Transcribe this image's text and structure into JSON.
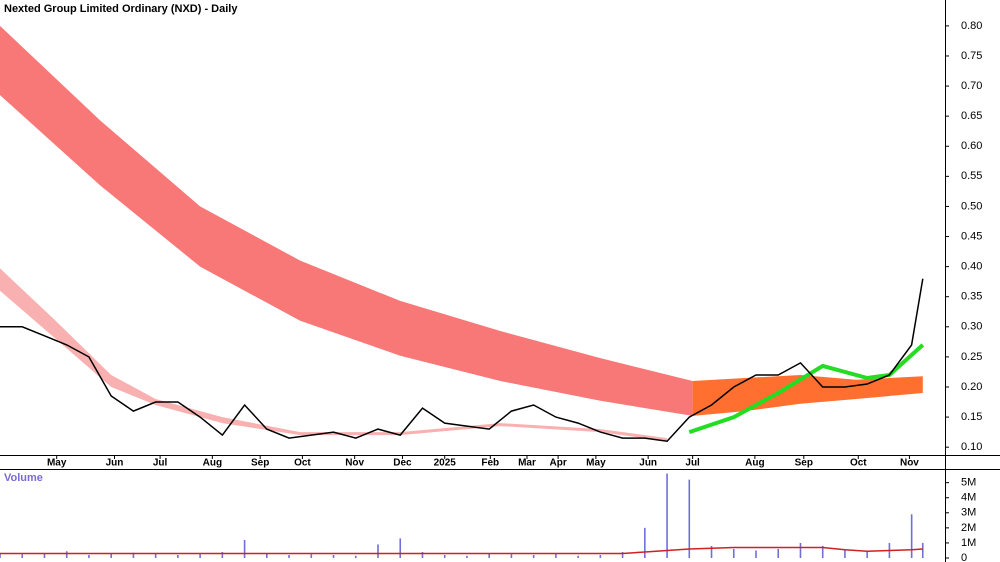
{
  "chart_data": [
    {
      "type": "line",
      "title": "Nexted Group Limited Ordinary (NXD) - Daily",
      "x": [
        0,
        2,
        4,
        6,
        8,
        10,
        12,
        14,
        16,
        18,
        20,
        22,
        24,
        26,
        28,
        30,
        32,
        34,
        36,
        38,
        40,
        42,
        44,
        46,
        48,
        50,
        52,
        54,
        56,
        58,
        60,
        62,
        64,
        66,
        68,
        70,
        72,
        74,
        76,
        78,
        80,
        82,
        83
      ],
      "xlim": [
        0,
        85
      ],
      "xticks": [
        {
          "value": 5.1,
          "label": "May"
        },
        {
          "value": 10.3,
          "label": "Jun"
        },
        {
          "value": 14.4,
          "label": "Jul"
        },
        {
          "value": 19.1,
          "label": "Aug"
        },
        {
          "value": 23.4,
          "label": "Sep"
        },
        {
          "value": 27.2,
          "label": "Oct"
        },
        {
          "value": 31.9,
          "label": "Nov"
        },
        {
          "value": 36.2,
          "label": "Dec"
        },
        {
          "value": 40.0,
          "label": "2025"
        },
        {
          "value": 44.1,
          "label": "Feb"
        },
        {
          "value": 47.4,
          "label": "Mar"
        },
        {
          "value": 50.2,
          "label": "Apr"
        },
        {
          "value": 53.6,
          "label": "May"
        },
        {
          "value": 58.3,
          "label": "Jun"
        },
        {
          "value": 62.3,
          "label": "Jul"
        },
        {
          "value": 67.9,
          "label": "Aug"
        },
        {
          "value": 72.3,
          "label": "Sep"
        },
        {
          "value": 77.2,
          "label": "Oct"
        },
        {
          "value": 81.8,
          "label": "Nov"
        }
      ],
      "ylim": [
        0.087,
        0.843
      ],
      "yticks": [
        {
          "value": 0.1,
          "label": "0.10"
        },
        0.15,
        {
          "value": 0.2,
          "label": "0.20"
        },
        0.25,
        {
          "value": 0.3,
          "label": "0.30"
        },
        0.35,
        {
          "value": 0.4,
          "label": "0.40"
        },
        0.45,
        {
          "value": 0.5,
          "label": "0.50"
        },
        0.55,
        {
          "value": 0.6,
          "label": "0.60"
        },
        0.65,
        {
          "value": 0.7,
          "label": "0.70"
        },
        0.75,
        {
          "value": 0.8,
          "label": "0.80"
        }
      ],
      "bands": [
        {
          "color": "#f87878",
          "x": [
            0,
            9,
            18,
            27,
            36,
            45,
            54,
            62.3
          ],
          "upper": [
            0.8,
            0.643,
            0.5,
            0.41,
            0.343,
            0.293,
            0.248,
            0.21
          ],
          "lower": [
            0.685,
            0.535,
            0.4,
            0.31,
            0.252,
            0.21,
            0.177,
            0.152
          ]
        },
        {
          "color": "#ff7030",
          "x": [
            62.3,
            67,
            72,
            77,
            83
          ],
          "upper": [
            0.21,
            0.215,
            0.22,
            0.212,
            0.218
          ],
          "lower": [
            0.152,
            0.16,
            0.172,
            0.18,
            0.19
          ]
        },
        {
          "color": "#f8b0b0",
          "x": [
            0,
            5,
            10,
            14,
            20,
            27,
            36,
            45,
            54,
            60
          ],
          "upper": [
            0.397,
            0.31,
            0.22,
            0.18,
            0.15,
            0.125,
            0.125,
            0.14,
            0.13,
            0.115
          ],
          "lower": [
            0.36,
            0.28,
            0.2,
            0.17,
            0.14,
            0.12,
            0.12,
            0.135,
            0.125,
            0.11
          ]
        }
      ],
      "lines": [
        {
          "color": "#22dd22",
          "x": [
            62,
            66,
            70,
            74,
            78,
            80,
            83
          ],
          "values": [
            0.125,
            0.15,
            0.19,
            0.235,
            0.215,
            0.22,
            0.27
          ]
        }
      ],
      "series": [
        {
          "color": "#000000",
          "values": [
            0.3,
            0.3,
            0.285,
            0.27,
            0.25,
            0.185,
            0.16,
            0.175,
            0.175,
            0.15,
            0.12,
            0.17,
            0.13,
            0.115,
            0.12,
            0.125,
            0.115,
            0.13,
            0.12,
            0.165,
            0.14,
            0.135,
            0.13,
            0.16,
            0.17,
            0.15,
            0.14,
            0.125,
            0.115,
            0.115,
            0.11,
            0.15,
            0.17,
            0.2,
            0.22,
            0.22,
            0.24,
            0.2,
            0.2,
            0.205,
            0.22,
            0.27,
            0.38
          ]
        }
      ]
    },
    {
      "type": "bar",
      "title": "Volume",
      "x": [
        0,
        2,
        4,
        6,
        8,
        10,
        12,
        14,
        16,
        18,
        20,
        22,
        24,
        26,
        28,
        30,
        32,
        34,
        36,
        38,
        40,
        42,
        44,
        46,
        48,
        50,
        52,
        54,
        56,
        58,
        60,
        62,
        64,
        66,
        68,
        70,
        72,
        74,
        76,
        78,
        80,
        82,
        83
      ],
      "xlim": [
        0,
        85
      ],
      "ylim": [
        0,
        5840000
      ],
      "yticks": [
        0,
        {
          "value": 1000000,
          "label": "1M"
        },
        {
          "value": 2000000,
          "label": "2M"
        },
        {
          "value": 3000000,
          "label": "3M"
        },
        {
          "value": 4000000,
          "label": "4M"
        },
        {
          "value": 5000000,
          "label": "5M"
        }
      ],
      "color": "#6f6fd8",
      "values": [
        300000,
        250000,
        300000,
        450000,
        200000,
        300000,
        350000,
        300000,
        200000,
        250000,
        400000,
        1200000,
        300000,
        200000,
        250000,
        200000,
        150000,
        900000,
        1300000,
        400000,
        200000,
        150000,
        300000,
        250000,
        200000,
        300000,
        150000,
        200000,
        400000,
        2000000,
        5600000,
        5200000,
        800000,
        600000,
        500000,
        600000,
        1000000,
        800000,
        600000,
        500000,
        1000000,
        2900000,
        1000000
      ],
      "series": [
        {
          "color": "#d02020",
          "values": [
            300000,
            300000,
            300000,
            300000,
            300000,
            300000,
            300000,
            300000,
            300000,
            300000,
            300000,
            300000,
            300000,
            300000,
            300000,
            300000,
            300000,
            300000,
            300000,
            300000,
            300000,
            300000,
            300000,
            300000,
            300000,
            300000,
            300000,
            300000,
            300000,
            400000,
            500000,
            600000,
            650000,
            700000,
            700000,
            700000,
            700000,
            700000,
            550000,
            450000,
            500000,
            550000,
            600000
          ]
        }
      ]
    }
  ]
}
